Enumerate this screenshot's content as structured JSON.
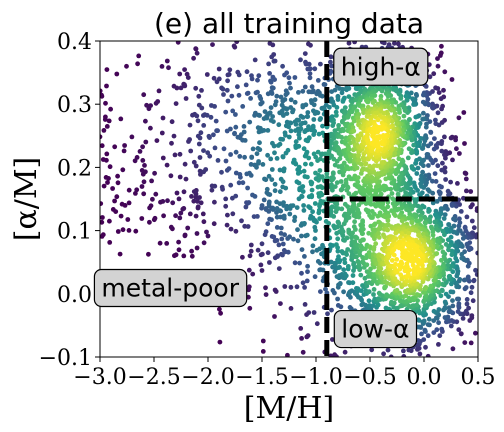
{
  "chart_data": {
    "type": "scatter",
    "title": "(e) all training data",
    "xlabel": "[M/H]",
    "ylabel": "[α/M]",
    "xlim": [
      -3.0,
      0.5
    ],
    "ylim": [
      -0.1,
      0.4
    ],
    "xticks": [
      "−3.0",
      "−2.5",
      "−2.0",
      "−1.5",
      "−1.0",
      "−0.5",
      "0.0",
      "0.5"
    ],
    "xtick_values": [
      -3.0,
      -2.5,
      -2.0,
      -1.5,
      -1.0,
      -0.5,
      0.0,
      0.5
    ],
    "yticks": [
      "−0.1",
      "0.0",
      "0.1",
      "0.2",
      "0.3",
      "0.4"
    ],
    "ytick_values": [
      -0.1,
      0.0,
      0.1,
      0.2,
      0.3,
      0.4
    ],
    "colormap": "viridis",
    "density_clusters": [
      {
        "cx": -0.4,
        "cy": 0.26,
        "sx": 0.25,
        "sy": 0.06,
        "weight": 0.9
      },
      {
        "cx": -0.1,
        "cy": 0.05,
        "sx": 0.28,
        "sy": 0.06,
        "weight": 1.0
      },
      {
        "cx": -0.6,
        "cy": 0.12,
        "sx": 0.35,
        "sy": 0.1,
        "weight": 0.45
      },
      {
        "cx": -1.2,
        "cy": 0.22,
        "sx": 0.35,
        "sy": 0.1,
        "weight": 0.3
      },
      {
        "cx": -1.8,
        "cy": 0.26,
        "sx": 0.4,
        "sy": 0.08,
        "weight": 0.12
      }
    ],
    "dividers": {
      "vertical_x": -0.9,
      "horizontal_y": 0.15,
      "horizontal_x_range": [
        -0.9,
        0.5
      ]
    },
    "annotations": [
      {
        "text": "high-α",
        "x": -0.4,
        "y": 0.36
      },
      {
        "text": "metal-poor",
        "x": -2.35,
        "y": 0.01
      },
      {
        "text": "low-α",
        "x": -0.45,
        "y": -0.055
      }
    ]
  }
}
